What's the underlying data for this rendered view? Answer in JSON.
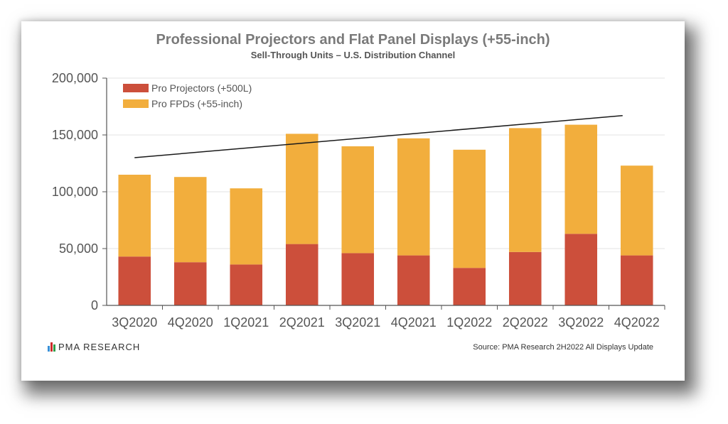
{
  "chart_data": {
    "type": "bar",
    "stacked": true,
    "title": "Professional Projectors and Flat Panel Displays (+55-inch)",
    "subtitle": "Sell-Through Units – U.S. Distribution Channel",
    "categories": [
      "3Q2020",
      "4Q2020",
      "1Q2021",
      "2Q2021",
      "3Q2021",
      "4Q2021",
      "1Q2022",
      "2Q2022",
      "3Q2022",
      "4Q2022"
    ],
    "series": [
      {
        "name": "Pro Projectors (+500L)",
        "color": "#cc4f3b",
        "values": [
          43000,
          38000,
          36000,
          54000,
          46000,
          44000,
          33000,
          47000,
          63000,
          44000
        ]
      },
      {
        "name": "Pro FPDs (+55-inch)",
        "color": "#f2ae3d",
        "values": [
          72000,
          75000,
          67000,
          97000,
          94000,
          103000,
          104000,
          109000,
          96000,
          79000
        ]
      }
    ],
    "trendline": {
      "start": 130000,
      "end": 167000,
      "color": "#1a1a1a"
    },
    "ylim": [
      0,
      200000
    ],
    "yticks": [
      0,
      50000,
      100000,
      150000,
      200000
    ],
    "ytick_labels": [
      "0",
      "50,000",
      "100,000",
      "150,000",
      "200,000"
    ],
    "grid": true,
    "legend_position": "top-left"
  },
  "footer": {
    "brand": "PMA RESEARCH",
    "brand_colors": [
      "#3a8fd6",
      "#cc2b2b",
      "#2e9e4b"
    ],
    "source": "Source: PMA Research 2H2022 All Displays Update"
  }
}
